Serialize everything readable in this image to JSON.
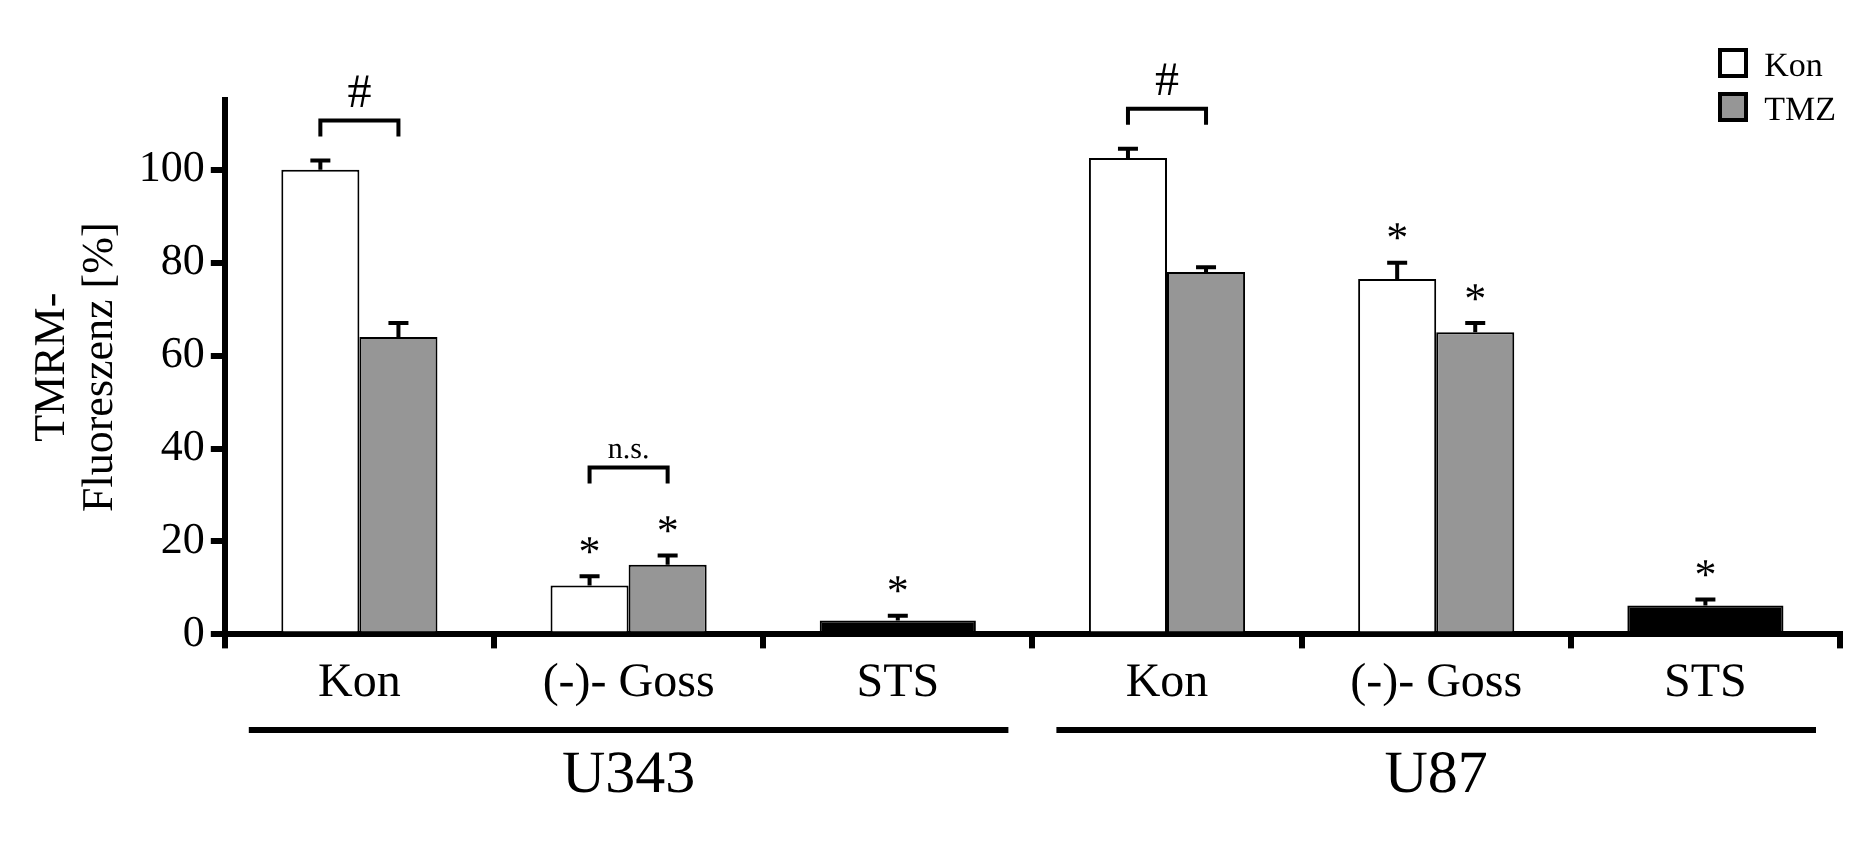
{
  "chart_data": {
    "type": "bar",
    "ylabel": "TMRM-Fluoreszenz [%]",
    "categories": [
      "Kon",
      "(-)- Goss",
      "STS",
      "Kon",
      "(-)- Goss",
      "STS"
    ],
    "series": [
      {
        "name": "Kon",
        "color": "#ffffff",
        "values": [
          100,
          10.5,
          null,
          102.5,
          76.5,
          null
        ],
        "errors": [
          2,
          2,
          null,
          2,
          3.5,
          null
        ],
        "value_labels": [
          null,
          "*",
          null,
          null,
          "*",
          null
        ]
      },
      {
        "name": "TMZ",
        "color": "#969696",
        "values": [
          64,
          15,
          null,
          78,
          65,
          null
        ],
        "errors": [
          3,
          2,
          null,
          1,
          2,
          null
        ],
        "value_labels": [
          null,
          "*",
          null,
          null,
          "*",
          null
        ]
      },
      {
        "color": "#000000",
        "values": [
          null,
          null,
          3,
          null,
          null,
          6.2
        ],
        "errors": [
          null,
          null,
          1,
          null,
          null,
          1.3
        ],
        "value_labels": [
          null,
          null,
          "*",
          null,
          null,
          "*"
        ]
      }
    ],
    "ylim": [
      0,
      115
    ],
    "yticks": [
      0,
      20,
      40,
      60,
      80,
      100
    ],
    "grid": false,
    "legend": "top right",
    "annotations": [
      "#",
      "n.s.",
      "#",
      "U343",
      "U87"
    ]
  }
}
